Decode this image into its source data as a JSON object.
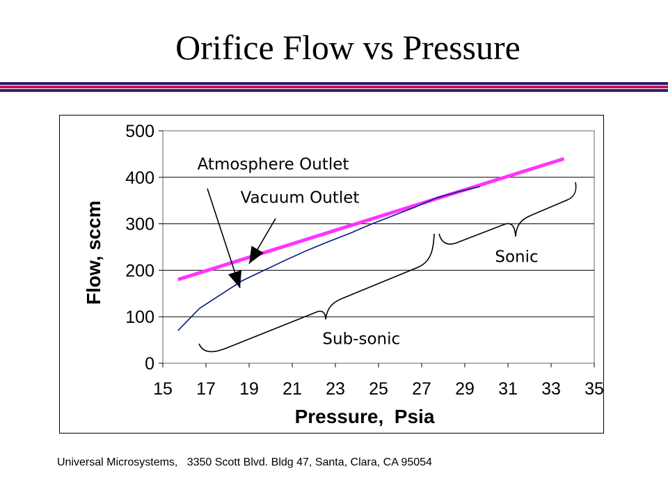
{
  "page": {
    "title": "Orifice Flow vs Pressure",
    "footer": "Universal Microsystems,   3350 Scott Blvd. Bldg 47, Santa, Clara, CA 95054",
    "rule_colors": [
      "#2e1a6e",
      "#c0165a",
      "#2e1a6e"
    ]
  },
  "chart_data": {
    "type": "line",
    "title": "",
    "xlabel": "Pressure,  Psia",
    "ylabel": "Flow, sccm",
    "xlim": [
      15,
      35
    ],
    "ylim": [
      0,
      500
    ],
    "xticks": [
      15,
      17,
      19,
      21,
      23,
      25,
      27,
      29,
      31,
      33,
      35
    ],
    "yticks": [
      0,
      100,
      200,
      300,
      400,
      500
    ],
    "grid": "horizontal",
    "legend": "none",
    "series": [
      {
        "color": "#ff33ff",
        "x": [
          15.7,
          33.6
        ],
        "y": [
          180,
          440
        ]
      },
      {
        "color": "#001a80",
        "x": [
          15.7,
          16.7,
          17.7,
          18.7,
          19.7,
          20.7,
          21.7,
          22.7,
          23.7,
          24.7,
          25.7,
          26.7,
          27.7,
          28.7,
          29.7
        ],
        "y": [
          70,
          118,
          148,
          178,
          200,
          222,
          243,
          262,
          280,
          300,
          318,
          336,
          356,
          369,
          380
        ]
      }
    ],
    "annotations": [
      {
        "text": "Atmosphere Outlet",
        "x": 16.6,
        "y": 417
      },
      {
        "text": "Vacuum Outlet",
        "x": 18.6,
        "y": 345
      },
      {
        "text": "Sonic",
        "x": 30.4,
        "y": 218
      },
      {
        "text": "Sub-sonic",
        "x": 22.4,
        "y": 41
      }
    ]
  }
}
